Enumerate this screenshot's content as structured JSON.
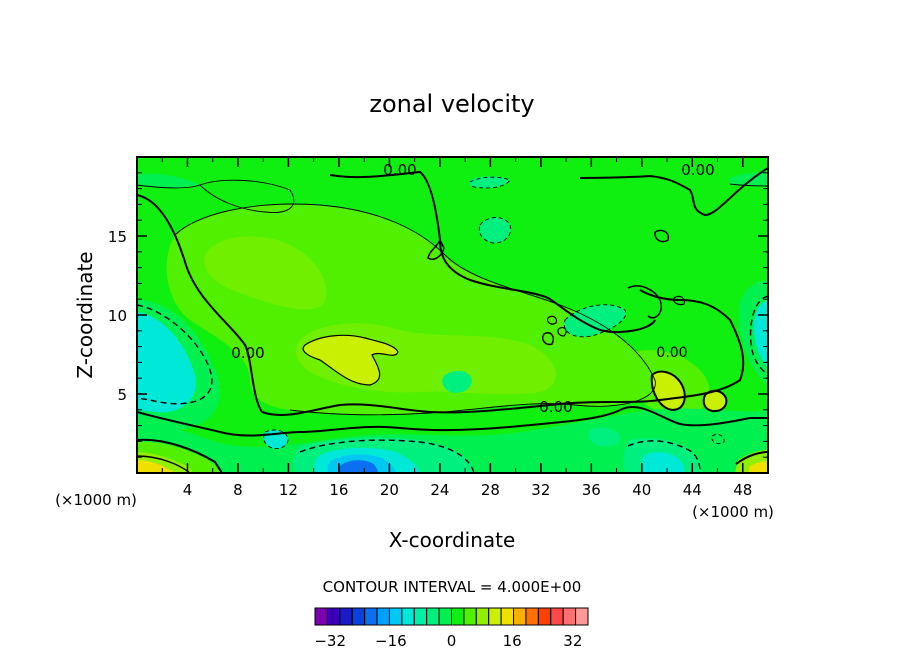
{
  "chart_data": {
    "type": "heatmap",
    "title": "zonal velocity",
    "xlabel": "X-coordinate",
    "ylabel": "Z-coordinate",
    "x_unit_left": "(×1000 m)",
    "x_unit_right": "(×1000 m)",
    "xlim": [
      0,
      50
    ],
    "ylim": [
      0,
      20
    ],
    "xticks": [
      "4",
      "8",
      "12",
      "16",
      "20",
      "24",
      "28",
      "32",
      "36",
      "40",
      "44",
      "48"
    ],
    "yticks": [
      "5",
      "10",
      "15"
    ],
    "contour_labels": [
      "0.00",
      "0.00",
      "0.00",
      "0.00",
      "0.00"
    ],
    "contour_interval_text": "CONTOUR INTERVAL = 4.000E+00",
    "colorbar": {
      "min": -36,
      "max": 36,
      "step": 4,
      "tick_labels": [
        "−32",
        "−16",
        "0",
        "16",
        "32"
      ],
      "colors": [
        "#7a00b0",
        "#3a00b8",
        "#1a1ac8",
        "#0a40e0",
        "#0a70f0",
        "#00a0ff",
        "#00c8f0",
        "#00e8d8",
        "#00f0a8",
        "#00f080",
        "#00f050",
        "#10f010",
        "#50f000",
        "#90f000",
        "#c8f000",
        "#f0e000",
        "#f8b000",
        "#ff7000",
        "#ff4000",
        "#ff4848",
        "#ff7070",
        "#ff9898"
      ]
    }
  }
}
